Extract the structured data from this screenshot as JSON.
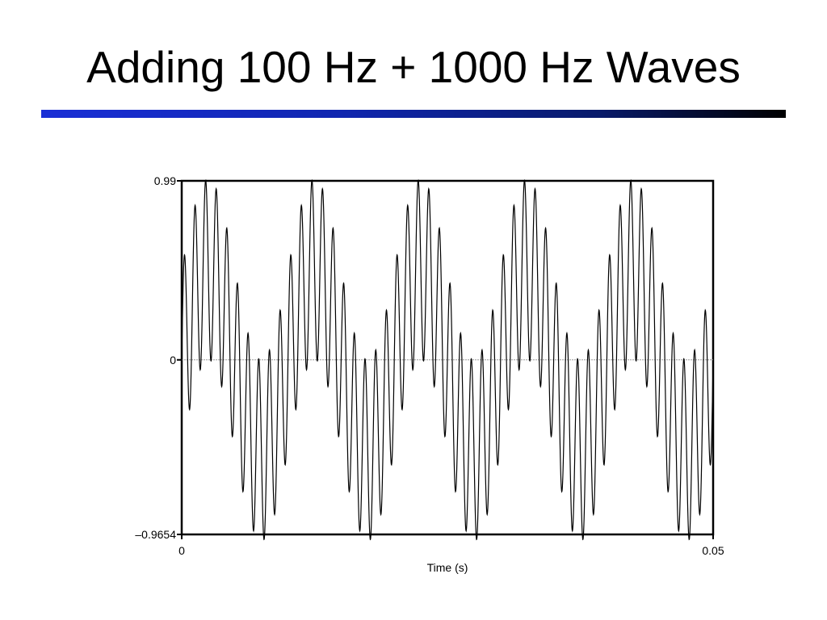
{
  "slide": {
    "title": "Adding 100 Hz + 1000 Hz Waves",
    "accent_colors": [
      "#1a2fd6",
      "#000000"
    ]
  },
  "chart_data": {
    "type": "line",
    "title": "",
    "xlabel": "Time (s)",
    "ylabel": "",
    "xlim": [
      0,
      0.05
    ],
    "ylim": [
      -0.9654,
      0.99
    ],
    "xticks": [
      {
        "value": 0,
        "label": "0"
      },
      {
        "value": 0.05,
        "label": "0.05"
      }
    ],
    "yticks": [
      {
        "value": 0.99,
        "label": "0.99"
      },
      {
        "value": 0,
        "label": "0"
      },
      {
        "value": -0.9654,
        "label": "–0.9654"
      }
    ],
    "zero_line": true,
    "grid": false,
    "series": [
      {
        "function": "0.5*sin(2*pi*100*t) + 0.5*sin(2*pi*1000*t)",
        "components_hz": [
          100,
          1000
        ],
        "amplitudes": [
          0.5,
          0.5
        ],
        "color": "#000000",
        "samples": 2500
      }
    ]
  }
}
